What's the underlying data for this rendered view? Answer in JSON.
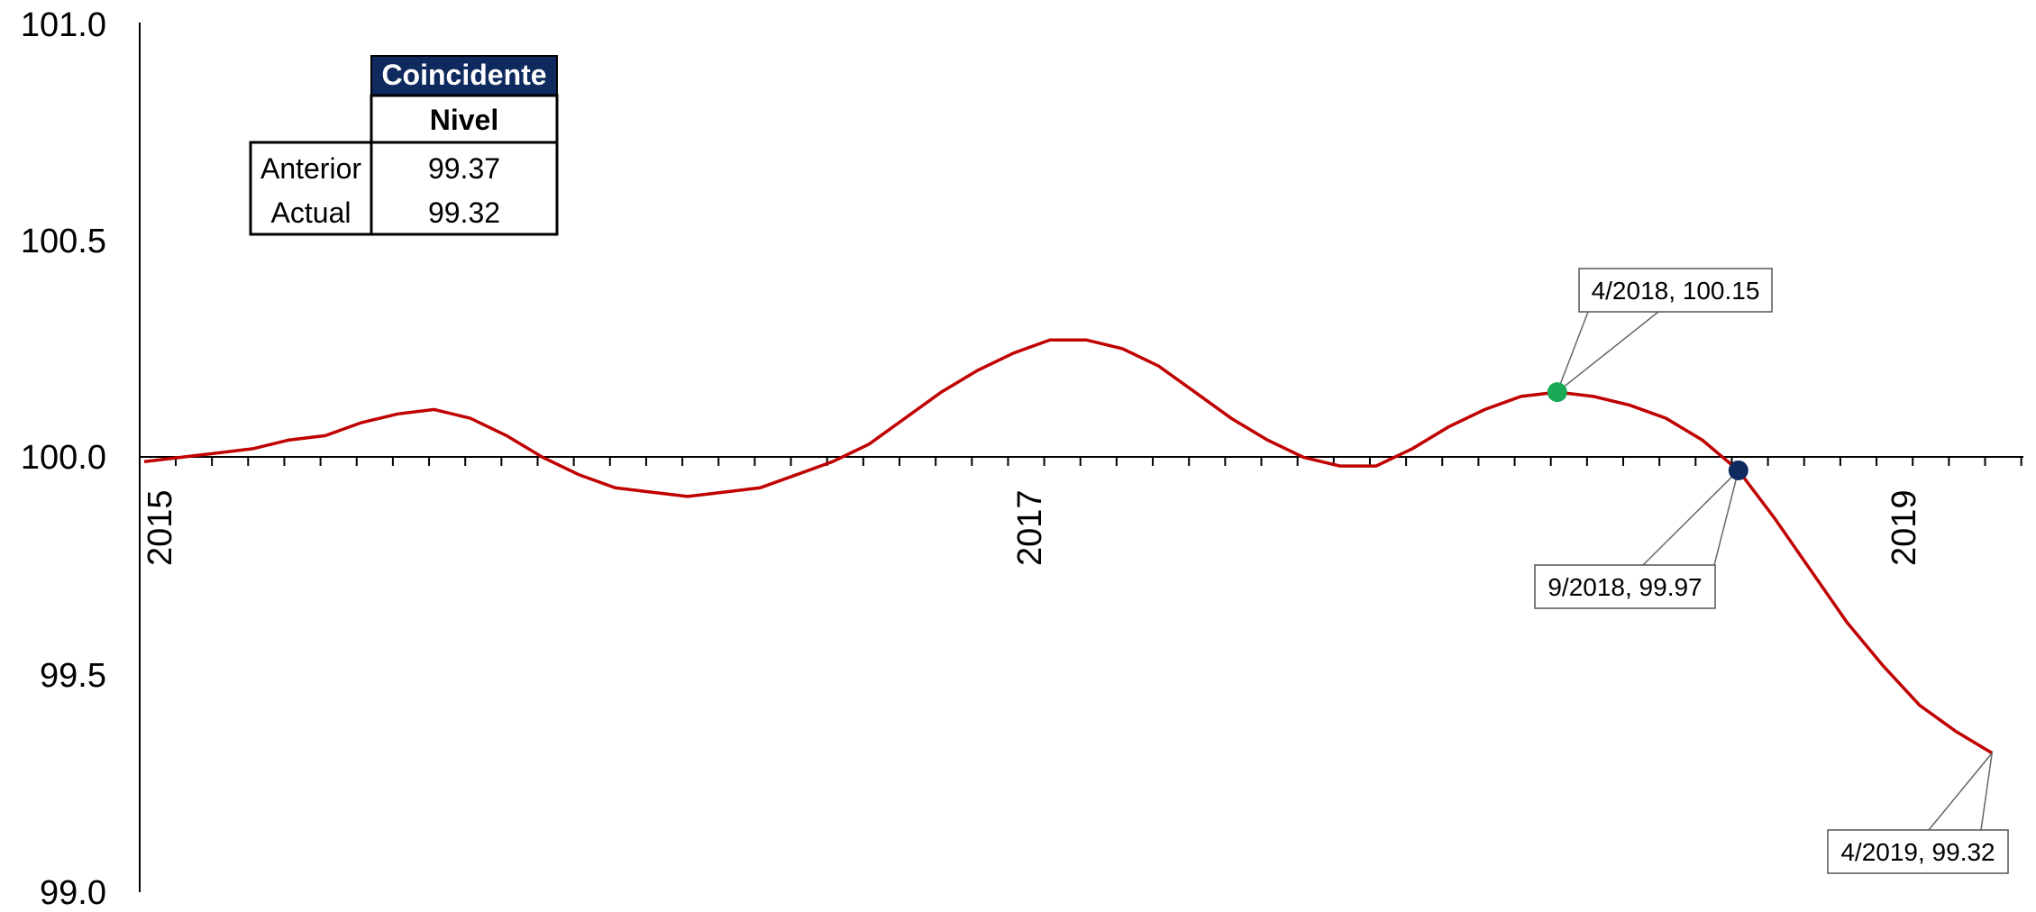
{
  "chart_data": {
    "type": "line",
    "title": "",
    "ylim": [
      99.0,
      101.0
    ],
    "y_ticks": [
      "101.0",
      "100.5",
      "100.0",
      "99.5",
      "99.0"
    ],
    "x_tick_labels": [
      {
        "label": "2015",
        "index": 0
      },
      {
        "label": "2017",
        "index": 24
      },
      {
        "label": "2019",
        "index": 48
      }
    ],
    "grid": false,
    "series": [
      {
        "color": "#c00000",
        "x": [
          "1/2015",
          "2/2015",
          "3/2015",
          "4/2015",
          "5/2015",
          "6/2015",
          "7/2015",
          "8/2015",
          "9/2015",
          "10/2015",
          "11/2015",
          "12/2015",
          "1/2016",
          "2/2016",
          "3/2016",
          "4/2016",
          "5/2016",
          "6/2016",
          "7/2016",
          "8/2016",
          "9/2016",
          "10/2016",
          "11/2016",
          "12/2016",
          "1/2017",
          "2/2017",
          "3/2017",
          "4/2017",
          "5/2017",
          "6/2017",
          "7/2017",
          "8/2017",
          "9/2017",
          "10/2017",
          "11/2017",
          "12/2017",
          "1/2018",
          "2/2018",
          "3/2018",
          "4/2018",
          "5/2018",
          "6/2018",
          "7/2018",
          "8/2018",
          "9/2018",
          "10/2018",
          "11/2018",
          "12/2018",
          "1/2019",
          "2/2019",
          "3/2019",
          "4/2019"
        ],
        "values": [
          99.99,
          100.0,
          100.01,
          100.02,
          100.04,
          100.05,
          100.08,
          100.1,
          100.11,
          100.09,
          100.05,
          100.0,
          99.96,
          99.93,
          99.92,
          99.91,
          99.92,
          99.93,
          99.96,
          99.99,
          100.03,
          100.09,
          100.15,
          100.2,
          100.24,
          100.27,
          100.27,
          100.25,
          100.21,
          100.15,
          100.09,
          100.04,
          100.0,
          99.98,
          99.98,
          100.02,
          100.07,
          100.11,
          100.14,
          100.15,
          100.14,
          100.12,
          100.09,
          100.04,
          99.97,
          99.86,
          99.74,
          99.62,
          99.52,
          99.43,
          99.37,
          99.32
        ]
      }
    ],
    "highlight_points": [
      {
        "index": 39,
        "color": "#1aaa55",
        "label": "4/2018, 100.15"
      },
      {
        "index": 44,
        "color": "#0f2a5e",
        "label": "9/2018, 99.97"
      },
      {
        "index": 51,
        "color": null,
        "label": "4/2019, 99.32"
      }
    ]
  },
  "info_table": {
    "header": "Coincidente",
    "subheader": "Nivel",
    "rows": [
      {
        "label": "Anterior",
        "value": "99.37"
      },
      {
        "label": "Actual",
        "value": "99.32"
      }
    ],
    "header_color": "#0f2a5e"
  }
}
